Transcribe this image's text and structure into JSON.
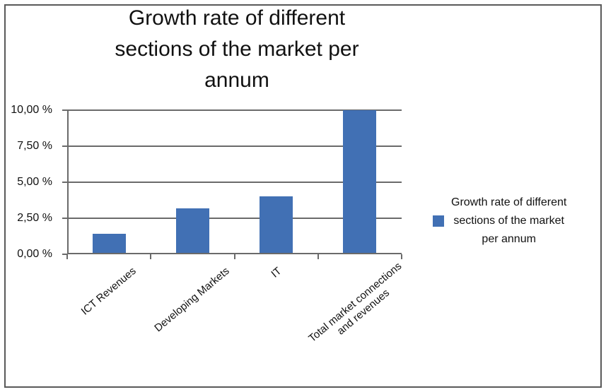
{
  "figure": {
    "border_color": "#595959",
    "background": "#ffffff"
  },
  "chart_data": {
    "type": "bar",
    "title": "Growth rate of different sections of the market per annum",
    "title_lines": "Growth rate of different\nsections of the market per\nannum",
    "categories": [
      "ICT Revenues",
      "Developing Markets",
      "IT",
      "Total market connections\nand revenues"
    ],
    "values": [
      1.4,
      3.2,
      4.0,
      10.0
    ],
    "xlabel": "",
    "ylabel": "",
    "ylim": [
      0,
      10
    ],
    "yticks": [
      {
        "value": 0,
        "label": "0,00 %"
      },
      {
        "value": 2.5,
        "label": "2,50 %"
      },
      {
        "value": 5,
        "label": "5,00 %"
      },
      {
        "value": 7.5,
        "label": "7,50 %"
      },
      {
        "value": 10,
        "label": "10,00 %"
      }
    ],
    "grid": true,
    "grid_color": "#6a6a6a",
    "bar_color": "#4170B4",
    "label_rotation_deg": -40,
    "legend": {
      "position": "right",
      "marker_color": "#4170B4",
      "label": "Growth rate of different sections of the market per annum",
      "label_lines": "Growth rate of different\nsections of the market\nper annum"
    }
  }
}
